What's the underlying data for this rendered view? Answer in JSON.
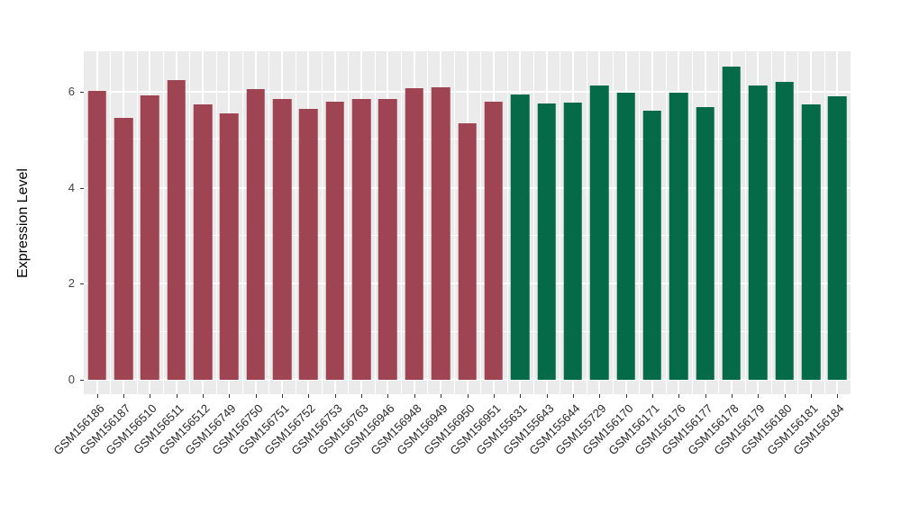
{
  "chart_data": {
    "type": "bar",
    "title": "",
    "xlabel": "",
    "ylabel": "Expression Level",
    "ylim": [
      -0.3,
      6.84
    ],
    "y_axis": {
      "ticks": [
        0,
        2,
        4,
        6
      ],
      "minor_ticks": [
        1,
        3,
        5
      ]
    },
    "legend_position": "none",
    "grid": true,
    "panel_background": "#EBEBEB",
    "grid_color": "#FFFFFF",
    "tick_color": "#333333",
    "groups": [
      {
        "id": "group1",
        "color": "#9E4452"
      },
      {
        "id": "group2",
        "color": "#046A48"
      }
    ],
    "bars": [
      {
        "label": "GSM156186",
        "value": 6.01,
        "group": "group1"
      },
      {
        "label": "GSM156187",
        "value": 5.46,
        "group": "group1"
      },
      {
        "label": "GSM156510",
        "value": 5.92,
        "group": "group1"
      },
      {
        "label": "GSM156511",
        "value": 6.24,
        "group": "group1"
      },
      {
        "label": "GSM156512",
        "value": 5.73,
        "group": "group1"
      },
      {
        "label": "GSM156749",
        "value": 5.54,
        "group": "group1"
      },
      {
        "label": "GSM156750",
        "value": 6.05,
        "group": "group1"
      },
      {
        "label": "GSM156751",
        "value": 5.85,
        "group": "group1"
      },
      {
        "label": "GSM156752",
        "value": 5.64,
        "group": "group1"
      },
      {
        "label": "GSM156753",
        "value": 5.8,
        "group": "group1"
      },
      {
        "label": "GSM156763",
        "value": 5.84,
        "group": "group1"
      },
      {
        "label": "GSM156946",
        "value": 5.85,
        "group": "group1"
      },
      {
        "label": "GSM156948",
        "value": 6.08,
        "group": "group1"
      },
      {
        "label": "GSM156949",
        "value": 6.1,
        "group": "group1"
      },
      {
        "label": "GSM156950",
        "value": 5.35,
        "group": "group1"
      },
      {
        "label": "GSM156951",
        "value": 5.8,
        "group": "group1"
      },
      {
        "label": "GSM155631",
        "value": 5.94,
        "group": "group2"
      },
      {
        "label": "GSM155643",
        "value": 5.75,
        "group": "group2"
      },
      {
        "label": "GSM155644",
        "value": 5.78,
        "group": "group2"
      },
      {
        "label": "GSM155729",
        "value": 6.13,
        "group": "group2"
      },
      {
        "label": "GSM156170",
        "value": 5.97,
        "group": "group2"
      },
      {
        "label": "GSM156171",
        "value": 5.6,
        "group": "group2"
      },
      {
        "label": "GSM156176",
        "value": 5.98,
        "group": "group2"
      },
      {
        "label": "GSM156177",
        "value": 5.68,
        "group": "group2"
      },
      {
        "label": "GSM156178",
        "value": 6.52,
        "group": "group2"
      },
      {
        "label": "GSM156179",
        "value": 6.13,
        "group": "group2"
      },
      {
        "label": "GSM156180",
        "value": 6.2,
        "group": "group2"
      },
      {
        "label": "GSM156181",
        "value": 5.73,
        "group": "group2"
      },
      {
        "label": "GSM156184",
        "value": 5.91,
        "group": "group2"
      }
    ]
  }
}
